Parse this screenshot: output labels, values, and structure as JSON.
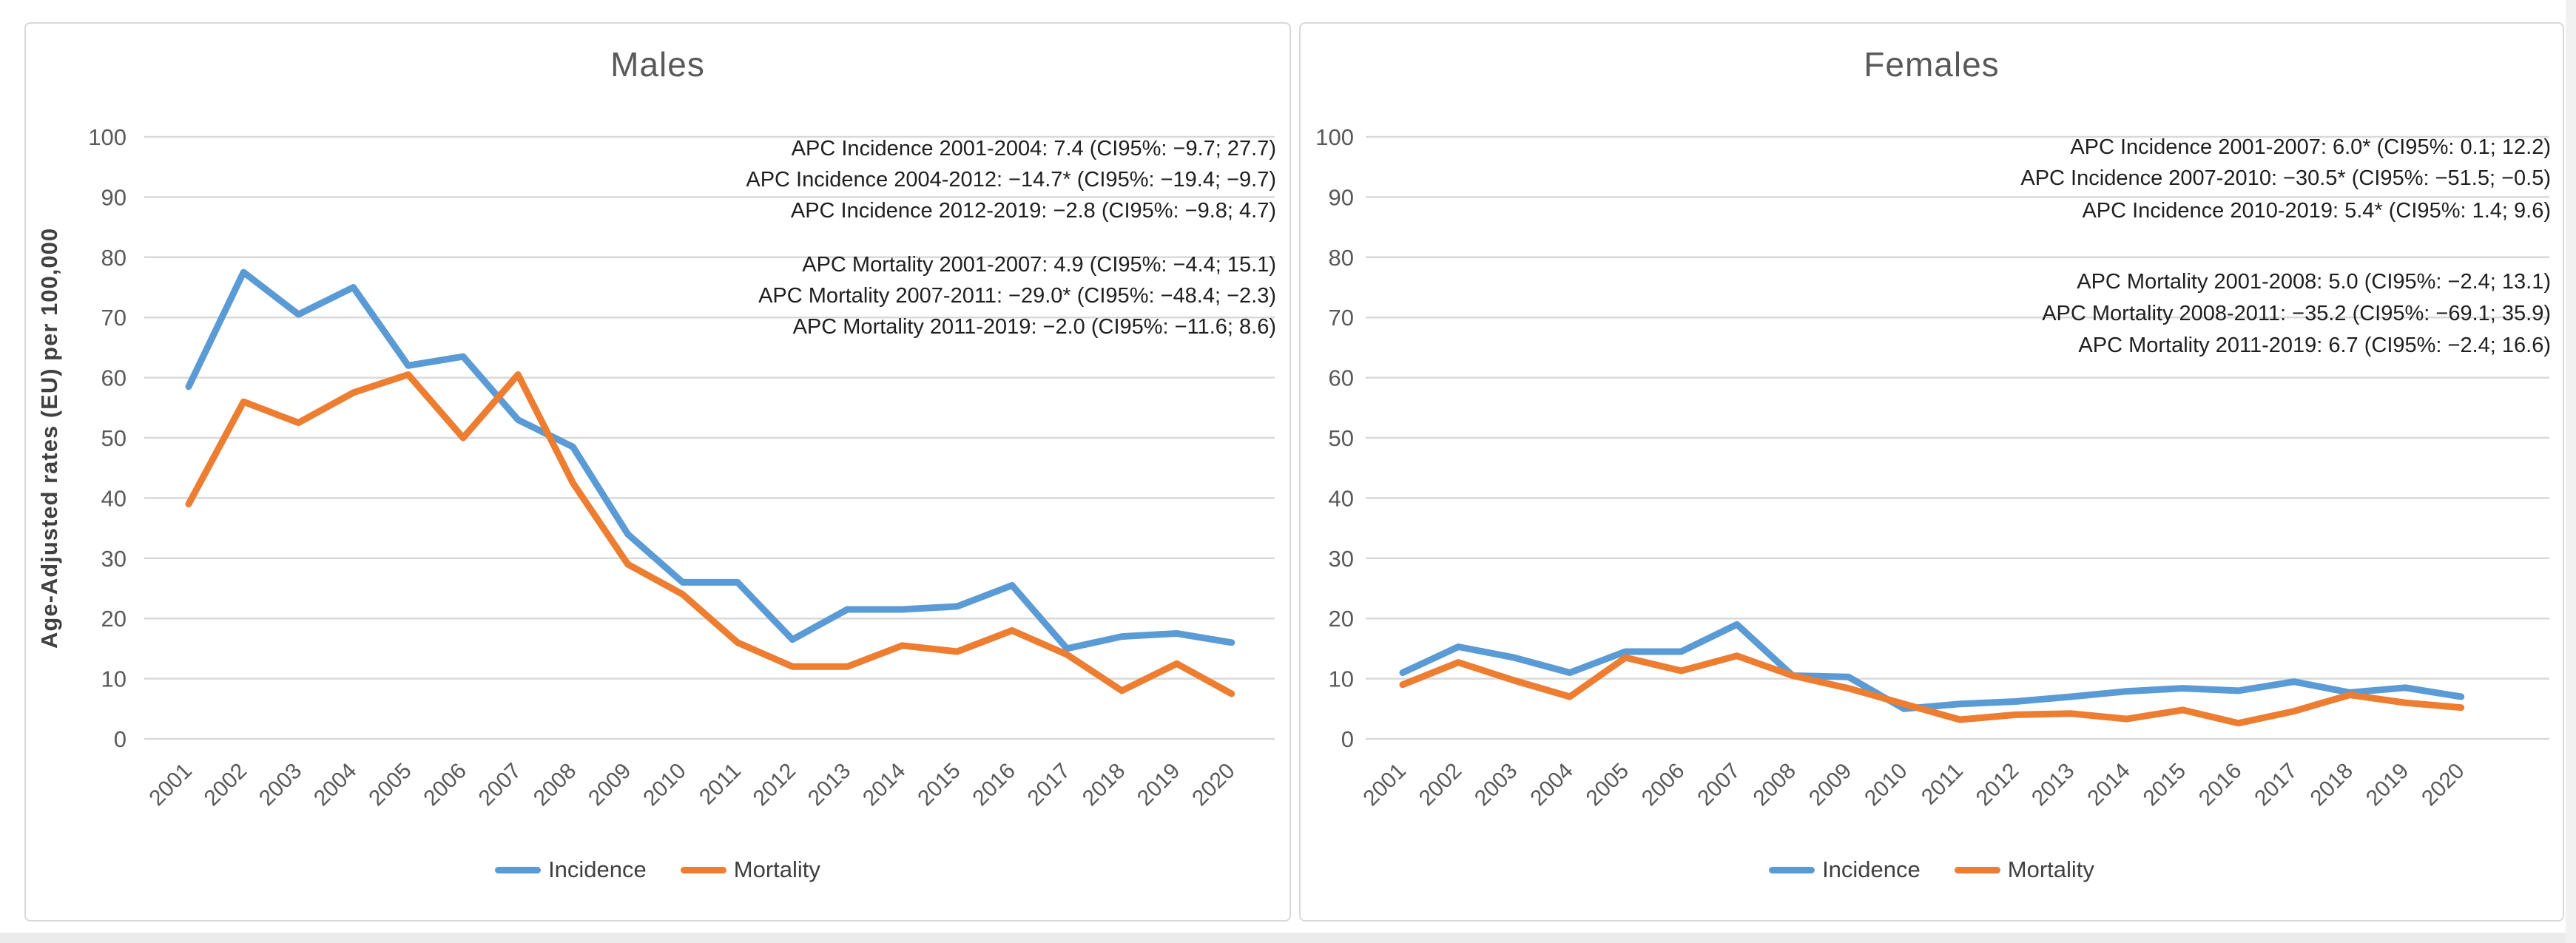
{
  "colors": {
    "incidence": "#5B9BD5",
    "mortality": "#ED7D31",
    "gridline": "#D9D9D9",
    "title_text": "#595959",
    "tick_text": "#595959",
    "annotation_text": "#1f1f1f",
    "axis_title_text": "#404040",
    "panel_border": "#D9D9D9"
  },
  "y_axis_title": "Age-Adjusted rates (EU) per 100,000",
  "legend": {
    "incidence_label": "Incidence",
    "mortality_label": "Mortality"
  },
  "chart_data": [
    {
      "type": "line",
      "title": "Males",
      "xlabel": "",
      "ylabel": "Age-Adjusted rates (EU) per 100,000",
      "ylim": [
        0,
        100
      ],
      "yticks": [
        100,
        90,
        80,
        70,
        60,
        50,
        40,
        30,
        20,
        10,
        0
      ],
      "grid": true,
      "legend_position": "bottom",
      "categories": [
        "2001",
        "2002",
        "2003",
        "2004",
        "2005",
        "2006",
        "2007",
        "2008",
        "2009",
        "2010",
        "2011",
        "2012",
        "2013",
        "2014",
        "2015",
        "2016",
        "2017",
        "2018",
        "2019",
        "2020"
      ],
      "series": [
        {
          "name": "Incidence",
          "color_key": "incidence",
          "values": [
            58.5,
            77.5,
            70.5,
            75,
            62,
            63.5,
            53,
            48.5,
            34,
            26,
            26,
            16.5,
            21.5,
            21.5,
            22,
            25.5,
            15,
            17,
            17.5,
            16
          ]
        },
        {
          "name": "Mortality",
          "color_key": "mortality",
          "values": [
            39,
            56,
            52.5,
            57.5,
            60.5,
            50,
            60.5,
            42.5,
            29,
            24,
            16,
            12,
            12,
            15.5,
            14.5,
            18,
            14,
            8,
            12.5,
            7.5
          ]
        }
      ],
      "annotations": {
        "incidence": [
          "APC Incidence 2001-2004: 7.4 (CI95%: −9.7; 27.7)",
          "APC Incidence 2004-2012: −14.7* (CI95%: −19.4; −9.7)",
          "APC Incidence 2012-2019: −2.8 (CI95%: −9.8; 4.7)"
        ],
        "mortality": [
          "APC Mortality 2001-2007: 4.9 (CI95%: −4.4; 15.1)",
          "APC Mortality 2007-2011: −29.0* (CI95%: −48.4; −2.3)",
          "APC Mortality 2011-2019: −2.0 (CI95%: −11.6; 8.6)"
        ]
      }
    },
    {
      "type": "line",
      "title": "Females",
      "xlabel": "",
      "ylabel": "",
      "ylim": [
        0,
        100
      ],
      "yticks": [
        100,
        90,
        80,
        70,
        60,
        50,
        40,
        30,
        20,
        10,
        0
      ],
      "grid": true,
      "legend_position": "bottom",
      "categories": [
        "2001",
        "2002",
        "2003",
        "2004",
        "2005",
        "2006",
        "2007",
        "2008",
        "2009",
        "2010",
        "2011",
        "2012",
        "2013",
        "2014",
        "2015",
        "2016",
        "2017",
        "2018",
        "2019",
        "2020"
      ],
      "series": [
        {
          "name": "Incidence",
          "color_key": "incidence",
          "values": [
            11,
            15.3,
            13.5,
            11,
            14.5,
            14.5,
            19,
            10.5,
            10.3,
            5,
            5.8,
            6.2,
            7,
            7.9,
            8.4,
            8,
            9.5,
            7.7,
            8.5,
            7
          ]
        },
        {
          "name": "Mortality",
          "color_key": "mortality",
          "values": [
            9,
            12.7,
            9.7,
            7,
            13.5,
            11.3,
            13.8,
            10.5,
            8.4,
            5.8,
            3.2,
            4,
            4.2,
            3.3,
            4.8,
            2.6,
            4.6,
            7.3,
            6,
            5.2
          ]
        }
      ],
      "annotations": {
        "incidence": [
          "APC Incidence 2001-2007: 6.0* (CI95%: 0.1; 12.2)",
          "APC Incidence 2007-2010: −30.5* (CI95%: −51.5; −0.5)",
          "APC Incidence 2010-2019: 5.4* (CI95%: 1.4; 9.6)"
        ],
        "mortality": [
          "APC Mortality 2001-2008: 5.0 (CI95%: −2.4; 13.1)",
          "APC Mortality 2008-2011: −35.2 (CI95%: −69.1; 35.9)",
          "APC Mortality 2011-2019: 6.7 (CI95%: −2.4; 16.6)"
        ]
      }
    }
  ]
}
